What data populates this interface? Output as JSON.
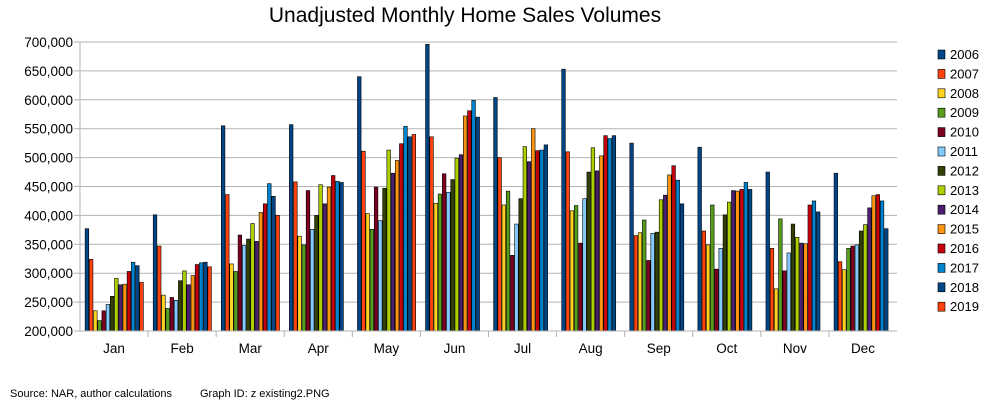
{
  "footer": {
    "source": "Source: NAR, author calculations",
    "graph_id": "Graph ID: z existing2.PNG"
  },
  "chart_data": {
    "type": "bar",
    "title": "Unadjusted Monthly Home Sales Volumes",
    "xlabel": "",
    "ylabel": "",
    "ylim": [
      200000,
      700000
    ],
    "y_ticks": [
      "200,000",
      "250,000",
      "300,000",
      "350,000",
      "400,000",
      "450,000",
      "500,000",
      "550,000",
      "600,000",
      "650,000",
      "700,000"
    ],
    "grid": true,
    "legend_position": "right",
    "categories": [
      "Jan",
      "Feb",
      "Mar",
      "Apr",
      "May",
      "Jun",
      "Jul",
      "Aug",
      "Sep",
      "Oct",
      "Nov",
      "Dec"
    ],
    "series": [
      {
        "name": "2006",
        "color": "#004586",
        "values": [
          377000,
          401000,
          555000,
          557000,
          640000,
          696000,
          604000,
          653000,
          525000,
          518000,
          475000,
          473000
        ]
      },
      {
        "name": "2007",
        "color": "#ff420e",
        "values": [
          324000,
          347000,
          436000,
          458000,
          511000,
          536000,
          500000,
          510000,
          365000,
          373000,
          343000,
          320000
        ]
      },
      {
        "name": "2008",
        "color": "#ffd320",
        "values": [
          235000,
          262000,
          316000,
          364000,
          403000,
          421000,
          418000,
          408000,
          370000,
          349000,
          273000,
          306000
        ]
      },
      {
        "name": "2009",
        "color": "#579d1c",
        "values": [
          218000,
          239000,
          303000,
          349000,
          376000,
          437000,
          442000,
          417000,
          392000,
          418000,
          394000,
          343000
        ]
      },
      {
        "name": "2010",
        "color": "#7e0021",
        "values": [
          235000,
          258000,
          366000,
          443000,
          449000,
          472000,
          331000,
          352000,
          322000,
          307000,
          304000,
          347000
        ]
      },
      {
        "name": "2011",
        "color": "#83caff",
        "values": [
          246000,
          253000,
          348000,
          376000,
          391000,
          440000,
          385000,
          429000,
          369000,
          343000,
          335000,
          349000
        ]
      },
      {
        "name": "2012",
        "color": "#314004",
        "values": [
          260000,
          287000,
          359000,
          400000,
          447000,
          462000,
          429000,
          475000,
          371000,
          401000,
          385000,
          373000
        ]
      },
      {
        "name": "2013",
        "color": "#aecf00",
        "values": [
          291000,
          304000,
          386000,
          453000,
          513000,
          499000,
          519000,
          517000,
          427000,
          423000,
          362000,
          384000
        ]
      },
      {
        "name": "2014",
        "color": "#4b1f6f",
        "values": [
          280000,
          280000,
          355000,
          420000,
          473000,
          505000,
          493000,
          477000,
          435000,
          443000,
          352000,
          413000
        ]
      },
      {
        "name": "2015",
        "color": "#ff950e",
        "values": [
          281000,
          296000,
          405000,
          449000,
          495000,
          572000,
          550000,
          503000,
          470000,
          442000,
          351000,
          434000
        ]
      },
      {
        "name": "2016",
        "color": "#c5000b",
        "values": [
          303000,
          315000,
          420000,
          469000,
          524000,
          581000,
          512000,
          538000,
          486000,
          445000,
          418000,
          436000
        ]
      },
      {
        "name": "2017",
        "color": "#0084d1",
        "values": [
          319000,
          318000,
          455000,
          459000,
          554000,
          599000,
          513000,
          533000,
          461000,
          457000,
          425000,
          425000
        ]
      },
      {
        "name": "2018",
        "color": "#004586",
        "values": [
          313000,
          319000,
          433000,
          457000,
          536000,
          570000,
          522000,
          538000,
          420000,
          445000,
          406000,
          377000
        ]
      },
      {
        "name": "2019",
        "color": "#ff420e",
        "values": [
          284000,
          311000,
          400000,
          null,
          540000,
          null,
          null,
          null,
          null,
          null,
          null,
          null
        ]
      }
    ]
  }
}
